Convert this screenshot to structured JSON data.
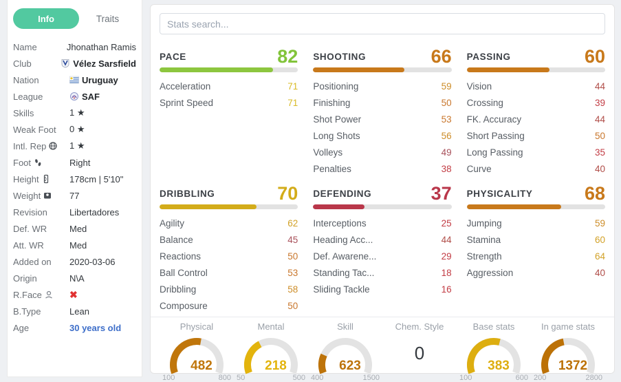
{
  "colors": {
    "tab_active": "#52c9a0",
    "stat_green": "#83c440",
    "stat_yellow": "#d9bb27",
    "stat_gold": "#d2a127",
    "stat_orange_gold": "#cd8d29",
    "stat_orange": "#c9772d",
    "stat_maroon": "#a8505a",
    "stat_dark_red": "#b04d48",
    "stat_red": "#c23c44",
    "header_green": "#82c43a",
    "header_gold": "#d3ac1a",
    "header_orange": "#c8791b",
    "header_red": "#b9374a",
    "pace_bar_green": "#8dc63f",
    "age_link": "#3d6ec9",
    "rface_red": "#e03131"
  },
  "sidebar": {
    "tabs": [
      {
        "label": "Info",
        "active": true
      },
      {
        "label": "Traits",
        "active": false
      }
    ],
    "rows": [
      {
        "label": "Name",
        "value": "Jhonathan Ramis"
      },
      {
        "label": "Club",
        "value": "Vélez Sarsfield",
        "value_icon": "club-crest-icon",
        "bold": true
      },
      {
        "label": "Nation",
        "value": "Uruguay",
        "value_icon": "uruguay-flag-icon",
        "bold": true
      },
      {
        "label": "League",
        "value": "SAF",
        "value_icon": "league-badge-icon",
        "bold": true
      },
      {
        "label": "Skills",
        "value": "1 ★"
      },
      {
        "label": "Weak Foot",
        "value": "0 ★"
      },
      {
        "label": "Intl. Rep",
        "label_icon": "globe-icon",
        "value": "1 ★"
      },
      {
        "label": "Foot",
        "label_icon": "footprints-icon",
        "value": "Right"
      },
      {
        "label": "Height",
        "label_icon": "height-ruler-icon",
        "value": "178cm | 5'10\""
      },
      {
        "label": "Weight",
        "label_icon": "weight-scale-icon",
        "value": "77"
      },
      {
        "label": "Revision",
        "value": "Libertadores"
      },
      {
        "label": "Def. WR",
        "value": "Med"
      },
      {
        "label": "Att. WR",
        "value": "Med"
      },
      {
        "label": "Added on",
        "value": "2020-03-06"
      },
      {
        "label": "Origin",
        "value": "N\\A"
      },
      {
        "label": "R.Face",
        "label_icon": "face-icon",
        "value": "✖",
        "special": "red-x"
      },
      {
        "label": "B.Type",
        "value": "Lean"
      },
      {
        "label": "Age",
        "value": "30 years old",
        "special": "age-link"
      }
    ]
  },
  "search": {
    "placeholder": "Stats search..."
  },
  "categories": [
    {
      "name": "PACE",
      "value": 82,
      "stats": [
        {
          "label": "Acceleration",
          "value": 71
        },
        {
          "label": "Sprint Speed",
          "value": 71
        }
      ]
    },
    {
      "name": "SHOOTING",
      "value": 66,
      "stats": [
        {
          "label": "Positioning",
          "value": 59
        },
        {
          "label": "Finishing",
          "value": 50
        },
        {
          "label": "Shot Power",
          "value": 53
        },
        {
          "label": "Long Shots",
          "value": 56
        },
        {
          "label": "Volleys",
          "value": 49
        },
        {
          "label": "Penalties",
          "value": 38
        }
      ]
    },
    {
      "name": "PASSING",
      "value": 60,
      "stats": [
        {
          "label": "Vision",
          "value": 44
        },
        {
          "label": "Crossing",
          "value": 39
        },
        {
          "label": "FK. Accuracy",
          "value": 44
        },
        {
          "label": "Short Passing",
          "value": 50
        },
        {
          "label": "Long Passing",
          "value": 35
        },
        {
          "label": "Curve",
          "value": 40
        }
      ]
    },
    {
      "name": "DRIBBLING",
      "value": 70,
      "stats": [
        {
          "label": "Agility",
          "value": 62
        },
        {
          "label": "Balance",
          "value": 45
        },
        {
          "label": "Reactions",
          "value": 50
        },
        {
          "label": "Ball Control",
          "value": 53
        },
        {
          "label": "Dribbling",
          "value": 58
        },
        {
          "label": "Composure",
          "value": 50
        }
      ]
    },
    {
      "name": "DEFENDING",
      "value": 37,
      "stats": [
        {
          "label": "Interceptions",
          "value": 25
        },
        {
          "label": "Heading Acc...",
          "value": 44
        },
        {
          "label": "Def. Awarene...",
          "value": 29
        },
        {
          "label": "Standing Tac...",
          "value": 18
        },
        {
          "label": "Sliding Tackle",
          "value": 16
        }
      ]
    },
    {
      "name": "PHYSICALITY",
      "value": 68,
      "stats": [
        {
          "label": "Jumping",
          "value": 59
        },
        {
          "label": "Stamina",
          "value": 60
        },
        {
          "label": "Strength",
          "value": 64
        },
        {
          "label": "Aggression",
          "value": 40
        }
      ]
    }
  ],
  "gauges": [
    {
      "label": "Physical",
      "value": 482,
      "min": 100,
      "max": 800,
      "color": "#c0760b",
      "type": "gauge"
    },
    {
      "label": "Mental",
      "value": 218,
      "min": 50,
      "max": 500,
      "color": "#e3b40d",
      "type": "gauge"
    },
    {
      "label": "Skill",
      "value": 623,
      "min": 400,
      "max": 1500,
      "color": "#bd730a",
      "type": "gauge"
    },
    {
      "label": "Chem. Style",
      "value": 0,
      "type": "number"
    },
    {
      "label": "Base stats",
      "value": 383,
      "min": 100,
      "max": 600,
      "color": "#ddae10",
      "type": "gauge"
    },
    {
      "label": "In game stats",
      "value": 1372,
      "min": 200,
      "max": 2800,
      "color": "#bc7106",
      "type": "gauge"
    }
  ]
}
